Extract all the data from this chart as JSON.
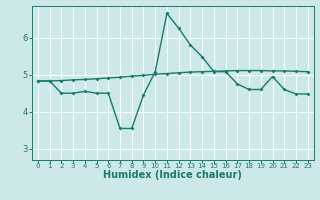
{
  "xlabel": "Humidex (Indice chaleur)",
  "bg_color": "#cce8e8",
  "grid_color": "#ffffff",
  "line_color": "#1a7a6e",
  "xlim": [
    -0.5,
    23.5
  ],
  "ylim": [
    2.7,
    6.85
  ],
  "yticks": [
    3,
    4,
    5,
    6
  ],
  "xticks": [
    0,
    1,
    2,
    3,
    4,
    5,
    6,
    7,
    8,
    9,
    10,
    11,
    12,
    13,
    14,
    15,
    16,
    17,
    18,
    19,
    20,
    21,
    22,
    23
  ],
  "line1_x": [
    0,
    1,
    2,
    3,
    4,
    5,
    6,
    7,
    8,
    9,
    10,
    11,
    12,
    13,
    14,
    15,
    16,
    17,
    18,
    19,
    20,
    21,
    22,
    23
  ],
  "line1_y": [
    4.83,
    4.83,
    4.84,
    4.86,
    4.87,
    4.89,
    4.91,
    4.93,
    4.96,
    4.98,
    5.01,
    5.03,
    5.05,
    5.07,
    5.08,
    5.09,
    5.1,
    5.11,
    5.11,
    5.11,
    5.1,
    5.1,
    5.09,
    5.08
  ],
  "line2_x": [
    0,
    1,
    2,
    3,
    4,
    5,
    6,
    7,
    8,
    9,
    10,
    11,
    12,
    13,
    14,
    15,
    16,
    17,
    18,
    19,
    20,
    21,
    22,
    23
  ],
  "line2_y": [
    4.83,
    4.83,
    4.5,
    4.5,
    4.55,
    4.5,
    4.5,
    3.55,
    3.55,
    4.45,
    5.08,
    6.65,
    6.25,
    5.8,
    5.48,
    5.08,
    5.08,
    4.75,
    4.6,
    4.6,
    4.95,
    4.6,
    4.48,
    4.48
  ],
  "xlabel_fontsize": 7,
  "tick_fontsize_y": 6,
  "tick_fontsize_x": 5,
  "line_width": 1.0,
  "marker_size": 2.0
}
